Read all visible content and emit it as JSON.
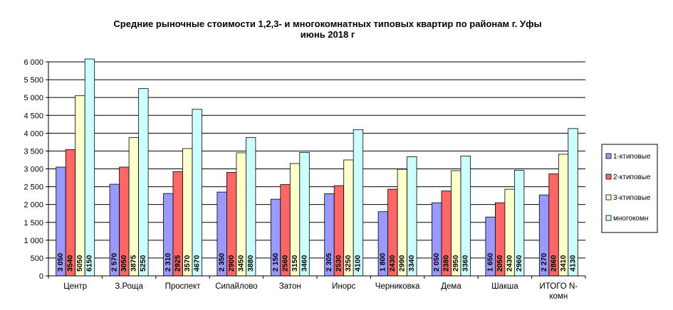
{
  "chart_data": {
    "type": "bar",
    "title": "Средние рыночные стоимости 1,2,3- и многокомнатных типовых квартир по районам г. Уфы",
    "subtitle": "июнь 2018 г",
    "categories": [
      "Центр",
      "З.Роща",
      "Проспект",
      "Сипайлово",
      "Затон",
      "Инорс",
      "Черниковка",
      "Дема",
      "Шакша",
      "ИТОГО N-комн"
    ],
    "series": [
      {
        "name": "1-ктиповые",
        "color": "#9999ff",
        "values": [
          3050,
          2570,
          2310,
          2350,
          2150,
          2305,
          1800,
          2050,
          1650,
          2270
        ],
        "labels": [
          "3 050",
          "2 570",
          "2 310",
          "2 350",
          "2 150",
          "2 305",
          "1 800",
          "2 050",
          "1 650",
          "2 270"
        ]
      },
      {
        "name": "2-ктиповые",
        "color": "#ff6666",
        "values": [
          3540,
          3050,
          2925,
          2900,
          2560,
          2530,
          2430,
          2380,
          2050,
          2860
        ],
        "labels": [
          "3540",
          "3050",
          "2925",
          "2900",
          "2560",
          "2530",
          "2430",
          "2380",
          "2050",
          "2860"
        ]
      },
      {
        "name": "3-ктиповые",
        "color": "#ffffcc",
        "values": [
          5050,
          3875,
          3570,
          3450,
          3150,
          3250,
          2990,
          2950,
          2430,
          3410
        ],
        "labels": [
          "5050",
          "3875",
          "3570",
          "3450",
          "3150",
          "3250",
          "2990",
          "2950",
          "2430",
          "3410"
        ]
      },
      {
        "name": "многокомн",
        "color": "#ccffff",
        "values": [
          6150,
          5250,
          4670,
          3880,
          3460,
          4100,
          3340,
          3360,
          2960,
          4130
        ],
        "labels": [
          "6150",
          "5250",
          "4670",
          "3880",
          "3460",
          "4100",
          "3340",
          "3360",
          "2960",
          "4130"
        ]
      }
    ],
    "ylim": [
      0,
      6000
    ],
    "yticks": [
      "0",
      "500",
      "1 000",
      "1 500",
      "2 000",
      "2 500",
      "3 000",
      "3 500",
      "4 000",
      "4 500",
      "5 000",
      "5 500",
      "6 000"
    ],
    "grid": true,
    "legend": "right"
  }
}
